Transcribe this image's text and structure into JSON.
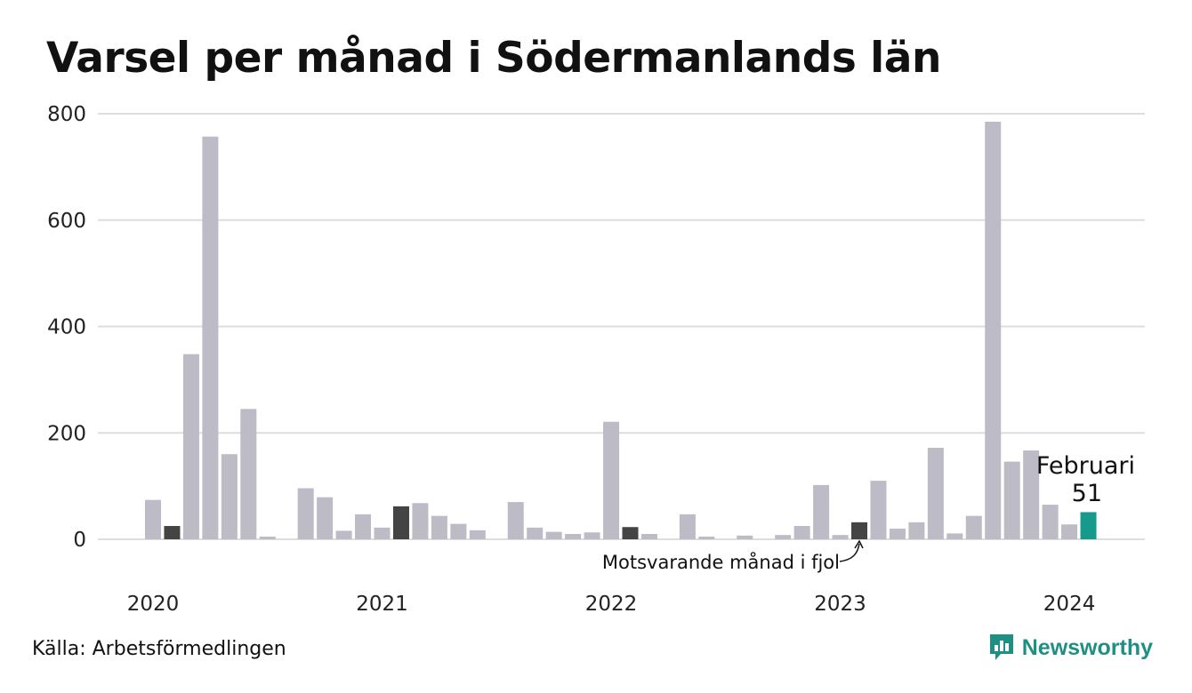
{
  "title": "Varsel per månad i Södermanlands län",
  "source": "Källa: Arbetsförmedlingen",
  "brand": {
    "name": "Newsworthy",
    "icon": "newsworthy-logo-icon",
    "color": "#1f8f84"
  },
  "colors": {
    "default": "#bcbbc6",
    "same_month": "#444444",
    "highlight": "#179a8b",
    "grid": "#dddddd"
  },
  "annotation": {
    "text": "Motsvarande månad i fjol"
  },
  "callout": {
    "month": "Februari",
    "value": "51"
  },
  "chart_data": {
    "type": "bar",
    "title": "Varsel per månad i Södermanlands län",
    "xlabel": "",
    "ylabel": "",
    "ylim": [
      0,
      800
    ],
    "yticks": [
      0,
      200,
      400,
      600,
      800
    ],
    "xtick_labels": [
      "2020",
      "2021",
      "2022",
      "2023",
      "2024"
    ],
    "start": "2020-01",
    "grid": true,
    "values": [
      74,
      25,
      348,
      757,
      160,
      245,
      5,
      0,
      96,
      79,
      16,
      47,
      22,
      62,
      68,
      44,
      29,
      17,
      0,
      70,
      22,
      14,
      10,
      13,
      221,
      23,
      10,
      0,
      47,
      5,
      0,
      7,
      0,
      8,
      25,
      102,
      8,
      32,
      110,
      20,
      32,
      172,
      11,
      44,
      785,
      146,
      167,
      65,
      28,
      51
    ],
    "same_month_indices": [
      1,
      13,
      25,
      37
    ],
    "highlight_index": 49
  }
}
